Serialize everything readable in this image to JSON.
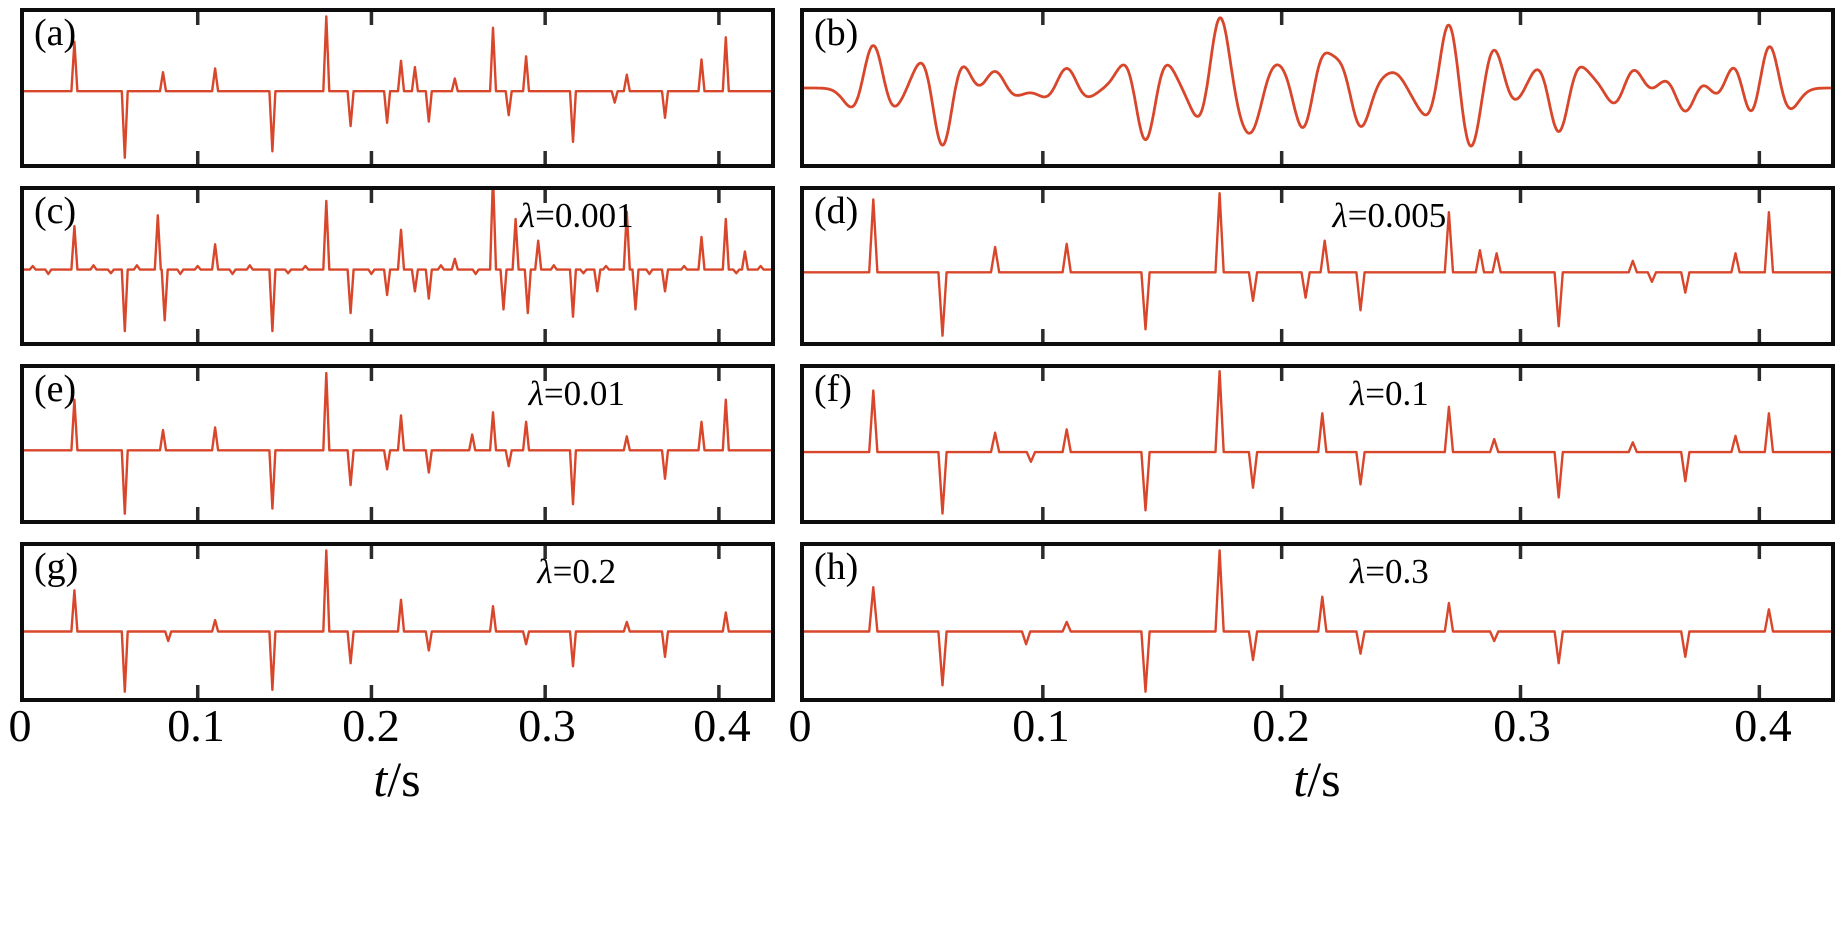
{
  "figure": {
    "background": "#ffffff",
    "border_color": "#0d0d0d"
  },
  "axis": {
    "xlim": [
      0,
      0.43
    ],
    "xticks": [
      0,
      0.1,
      0.2,
      0.3,
      0.4
    ],
    "tick_labels": [
      "0",
      "0.1",
      "0.2",
      "0.3",
      "0.4"
    ],
    "xlabel_var": "t",
    "xlabel_unit": "/s"
  },
  "chart_data": {
    "type": "line",
    "line_color": "#d8472b",
    "tick_color": "#2b2b2b",
    "xlim": [
      0,
      0.43
    ],
    "xticks": [
      0.1,
      0.2,
      0.3,
      0.4
    ],
    "xlabel": "t/s",
    "grid": false,
    "legend": false,
    "description": "Eight stacked trace panels: (a) true sparse reflectivity spike series, (b) smooth seismic trace (wavelet-convolved version of a), (c)-(h) recovered spike series for increasing regularization lambda.",
    "panels": [
      {
        "id": "a",
        "label": "(a)",
        "type": "spikes",
        "ylim": [
          -1.15,
          1.25
        ],
        "spikes": [
          [
            0.029,
            0.78
          ],
          [
            0.058,
            -1.05
          ],
          [
            0.08,
            0.3
          ],
          [
            0.11,
            0.36
          ],
          [
            0.143,
            -0.95
          ],
          [
            0.174,
            1.18
          ],
          [
            0.188,
            -0.55
          ],
          [
            0.209,
            -0.5
          ],
          [
            0.217,
            0.48
          ],
          [
            0.225,
            0.38
          ],
          [
            0.233,
            -0.48
          ],
          [
            0.248,
            0.2
          ],
          [
            0.27,
            1.0
          ],
          [
            0.279,
            -0.38
          ],
          [
            0.289,
            0.55
          ],
          [
            0.316,
            -0.8
          ],
          [
            0.34,
            -0.18
          ],
          [
            0.347,
            0.26
          ],
          [
            0.369,
            -0.42
          ],
          [
            0.39,
            0.5
          ],
          [
            0.404,
            0.85
          ]
        ]
      },
      {
        "id": "b",
        "label": "(b)",
        "type": "smooth",
        "wavelet_hz": 42,
        "ylim": [
          -1.05,
          1.05
        ],
        "spikes": [
          [
            0.029,
            0.78
          ],
          [
            0.058,
            -1.05
          ],
          [
            0.08,
            0.3
          ],
          [
            0.11,
            0.36
          ],
          [
            0.143,
            -0.95
          ],
          [
            0.174,
            1.18
          ],
          [
            0.188,
            -0.55
          ],
          [
            0.209,
            -0.5
          ],
          [
            0.217,
            0.48
          ],
          [
            0.225,
            0.38
          ],
          [
            0.233,
            -0.48
          ],
          [
            0.248,
            0.2
          ],
          [
            0.27,
            1.0
          ],
          [
            0.279,
            -0.38
          ],
          [
            0.289,
            0.55
          ],
          [
            0.316,
            -0.8
          ],
          [
            0.34,
            -0.18
          ],
          [
            0.347,
            0.26
          ],
          [
            0.369,
            -0.42
          ],
          [
            0.39,
            0.5
          ],
          [
            0.404,
            0.85
          ]
        ]
      },
      {
        "id": "c",
        "label": "(c)",
        "lambda_symbol": "λ",
        "lambda_rest": "=0.001",
        "type": "spikes",
        "ylim": [
          -1.0,
          1.1
        ],
        "spikes": [
          [
            0.005,
            0.05
          ],
          [
            0.014,
            -0.06
          ],
          [
            0.029,
            0.6
          ],
          [
            0.04,
            0.06
          ],
          [
            0.05,
            -0.05
          ],
          [
            0.058,
            -0.85
          ],
          [
            0.065,
            0.06
          ],
          [
            0.077,
            0.75
          ],
          [
            0.081,
            -0.7
          ],
          [
            0.09,
            -0.06
          ],
          [
            0.1,
            0.05
          ],
          [
            0.11,
            0.35
          ],
          [
            0.12,
            -0.06
          ],
          [
            0.13,
            0.06
          ],
          [
            0.143,
            -0.85
          ],
          [
            0.152,
            -0.05
          ],
          [
            0.162,
            0.05
          ],
          [
            0.174,
            0.95
          ],
          [
            0.188,
            -0.6
          ],
          [
            0.2,
            -0.06
          ],
          [
            0.209,
            -0.35
          ],
          [
            0.217,
            0.55
          ],
          [
            0.225,
            -0.3
          ],
          [
            0.233,
            -0.4
          ],
          [
            0.24,
            0.06
          ],
          [
            0.248,
            0.15
          ],
          [
            0.26,
            -0.06
          ],
          [
            0.27,
            1.3
          ],
          [
            0.276,
            -0.55
          ],
          [
            0.283,
            0.7
          ],
          [
            0.29,
            -0.6
          ],
          [
            0.296,
            0.4
          ],
          [
            0.305,
            0.06
          ],
          [
            0.316,
            -0.65
          ],
          [
            0.322,
            -0.05
          ],
          [
            0.33,
            -0.3
          ],
          [
            0.335,
            0.05
          ],
          [
            0.347,
            0.8
          ],
          [
            0.352,
            -0.55
          ],
          [
            0.36,
            -0.06
          ],
          [
            0.369,
            -0.3
          ],
          [
            0.38,
            0.05
          ],
          [
            0.39,
            0.45
          ],
          [
            0.404,
            0.7
          ],
          [
            0.41,
            -0.05
          ],
          [
            0.415,
            0.25
          ],
          [
            0.424,
            0.05
          ]
        ]
      },
      {
        "id": "d",
        "label": "(d)",
        "lambda_symbol": "λ",
        "lambda_rest": "=0.005",
        "type": "spikes",
        "ylim": [
          -1.1,
          1.3
        ],
        "spikes": [
          [
            0.029,
            1.15
          ],
          [
            0.058,
            -1.0
          ],
          [
            0.08,
            0.4
          ],
          [
            0.11,
            0.45
          ],
          [
            0.143,
            -0.9
          ],
          [
            0.174,
            1.25
          ],
          [
            0.188,
            -0.45
          ],
          [
            0.21,
            -0.4
          ],
          [
            0.218,
            0.5
          ],
          [
            0.233,
            -0.6
          ],
          [
            0.27,
            0.95
          ],
          [
            0.283,
            0.35
          ],
          [
            0.29,
            0.3
          ],
          [
            0.316,
            -0.85
          ],
          [
            0.347,
            0.18
          ],
          [
            0.355,
            -0.15
          ],
          [
            0.369,
            -0.32
          ],
          [
            0.39,
            0.3
          ],
          [
            0.404,
            0.95
          ]
        ]
      },
      {
        "id": "e",
        "label": "(e)",
        "lambda_symbol": "λ",
        "lambda_rest": "=0.01",
        "type": "spikes",
        "ylim": [
          -1.1,
          1.3
        ],
        "spikes": [
          [
            0.029,
            0.8
          ],
          [
            0.058,
            -1.0
          ],
          [
            0.08,
            0.32
          ],
          [
            0.11,
            0.36
          ],
          [
            0.143,
            -0.92
          ],
          [
            0.174,
            1.22
          ],
          [
            0.188,
            -0.55
          ],
          [
            0.209,
            -0.3
          ],
          [
            0.217,
            0.55
          ],
          [
            0.233,
            -0.35
          ],
          [
            0.258,
            0.25
          ],
          [
            0.27,
            0.6
          ],
          [
            0.279,
            -0.25
          ],
          [
            0.289,
            0.45
          ],
          [
            0.316,
            -0.85
          ],
          [
            0.347,
            0.22
          ],
          [
            0.369,
            -0.45
          ],
          [
            0.39,
            0.45
          ],
          [
            0.404,
            0.8
          ]
        ]
      },
      {
        "id": "f",
        "label": "(f)",
        "lambda_symbol": "λ",
        "lambda_rest": "=0.1",
        "type": "spikes",
        "ylim": [
          -1.05,
          1.3
        ],
        "spikes": [
          [
            0.029,
            0.95
          ],
          [
            0.058,
            -0.95
          ],
          [
            0.08,
            0.3
          ],
          [
            0.095,
            -0.15
          ],
          [
            0.11,
            0.35
          ],
          [
            0.143,
            -0.9
          ],
          [
            0.174,
            1.25
          ],
          [
            0.188,
            -0.55
          ],
          [
            0.217,
            0.6
          ],
          [
            0.233,
            -0.5
          ],
          [
            0.27,
            0.7
          ],
          [
            0.289,
            0.2
          ],
          [
            0.316,
            -0.7
          ],
          [
            0.347,
            0.15
          ],
          [
            0.369,
            -0.45
          ],
          [
            0.39,
            0.25
          ],
          [
            0.404,
            0.6
          ]
        ]
      },
      {
        "id": "g",
        "label": "(g)",
        "lambda_symbol": "λ",
        "lambda_rest": "=0.2",
        "type": "spikes",
        "ylim": [
          -1.05,
          1.35
        ],
        "spikes": [
          [
            0.029,
            0.65
          ],
          [
            0.058,
            -0.95
          ],
          [
            0.083,
            -0.15
          ],
          [
            0.11,
            0.18
          ],
          [
            0.143,
            -0.92
          ],
          [
            0.174,
            1.28
          ],
          [
            0.188,
            -0.5
          ],
          [
            0.217,
            0.5
          ],
          [
            0.233,
            -0.3
          ],
          [
            0.27,
            0.4
          ],
          [
            0.289,
            -0.2
          ],
          [
            0.316,
            -0.55
          ],
          [
            0.347,
            0.15
          ],
          [
            0.369,
            -0.4
          ],
          [
            0.404,
            0.3
          ]
        ]
      },
      {
        "id": "h",
        "label": "(h)",
        "lambda_symbol": "λ",
        "lambda_rest": "=0.3",
        "type": "spikes",
        "ylim": [
          -1.05,
          1.35
        ],
        "spikes": [
          [
            0.029,
            0.7
          ],
          [
            0.058,
            -0.85
          ],
          [
            0.093,
            -0.2
          ],
          [
            0.11,
            0.15
          ],
          [
            0.143,
            -0.95
          ],
          [
            0.174,
            1.28
          ],
          [
            0.188,
            -0.45
          ],
          [
            0.217,
            0.55
          ],
          [
            0.233,
            -0.35
          ],
          [
            0.27,
            0.45
          ],
          [
            0.289,
            -0.15
          ],
          [
            0.316,
            -0.5
          ],
          [
            0.369,
            -0.4
          ],
          [
            0.404,
            0.35
          ]
        ]
      }
    ]
  }
}
